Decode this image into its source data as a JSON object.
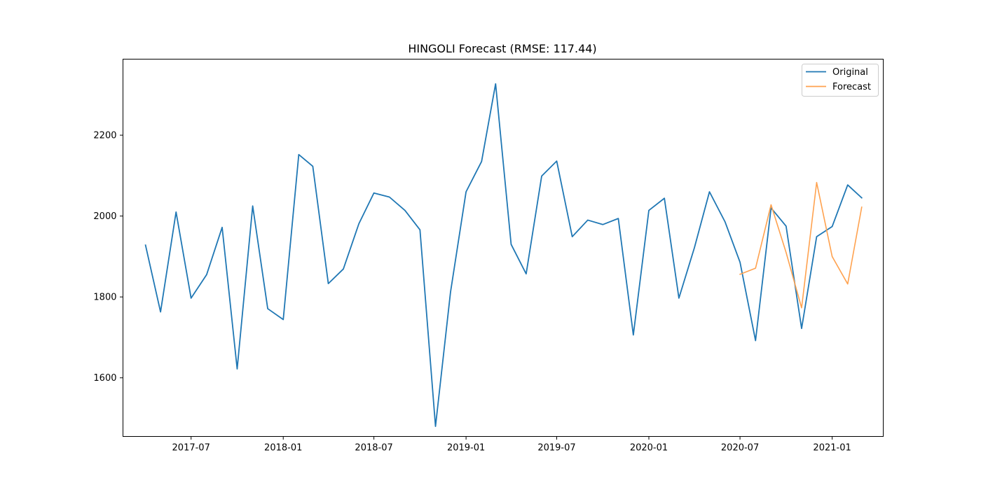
{
  "chart_data": {
    "type": "line",
    "title": "HINGOLI Forecast (RMSE: 117.44)",
    "xlabel": "",
    "ylabel": "",
    "xlim": [
      "2017-02-15",
      "2021-04-13"
    ],
    "ylim": [
      1455,
      2388
    ],
    "x_ticks": [
      "2017-07",
      "2018-01",
      "2018-07",
      "2019-01",
      "2019-07",
      "2020-01",
      "2020-07",
      "2021-01"
    ],
    "y_ticks": [
      1600,
      1800,
      2000,
      2200
    ],
    "grid": false,
    "legend_position": "top-right",
    "series": [
      {
        "name": "Original",
        "color": "#1f77b4",
        "x": [
          "2017-04-01",
          "2017-05-01",
          "2017-06-01",
          "2017-07-01",
          "2017-08-01",
          "2017-09-01",
          "2017-10-01",
          "2017-11-01",
          "2017-12-01",
          "2018-01-01",
          "2018-02-01",
          "2018-03-01",
          "2018-04-01",
          "2018-05-01",
          "2018-06-01",
          "2018-07-01",
          "2018-08-01",
          "2018-09-01",
          "2018-10-01",
          "2018-11-01",
          "2018-12-01",
          "2019-01-01",
          "2019-02-01",
          "2019-03-01",
          "2019-04-01",
          "2019-05-01",
          "2019-06-01",
          "2019-07-01",
          "2019-08-01",
          "2019-09-01",
          "2019-10-01",
          "2019-11-01",
          "2019-12-01",
          "2020-01-01",
          "2020-02-01",
          "2020-03-01",
          "2020-04-01",
          "2020-05-01",
          "2020-06-01",
          "2020-07-01",
          "2020-08-01",
          "2020-09-01",
          "2020-10-01",
          "2020-11-01",
          "2020-12-01",
          "2021-01-01",
          "2021-02-01",
          "2021-03-01"
        ],
        "values": [
          1928,
          1763,
          2010,
          1797,
          1855,
          1972,
          1622,
          2025,
          1771,
          1744,
          2152,
          2123,
          1833,
          1869,
          1981,
          2057,
          2047,
          2014,
          1966,
          1480,
          1812,
          2060,
          2135,
          2327,
          1930,
          1857,
          2099,
          2136,
          1949,
          1990,
          1979,
          1994,
          1706,
          2014,
          2044,
          1797,
          1922,
          2060,
          1986,
          1886,
          1692,
          2020,
          1975,
          1722,
          1949,
          1974,
          2077,
          2045
        ]
      },
      {
        "name": "Forecast",
        "color": "#ffa24f",
        "x": [
          "2020-07-01",
          "2020-08-01",
          "2020-09-01",
          "2020-10-01",
          "2020-11-01",
          "2020-12-01",
          "2021-01-01",
          "2021-02-01",
          "2021-03-01"
        ],
        "values": [
          1856,
          1871,
          2028,
          1910,
          1773,
          2083,
          1900,
          1832,
          2022
        ]
      }
    ]
  }
}
